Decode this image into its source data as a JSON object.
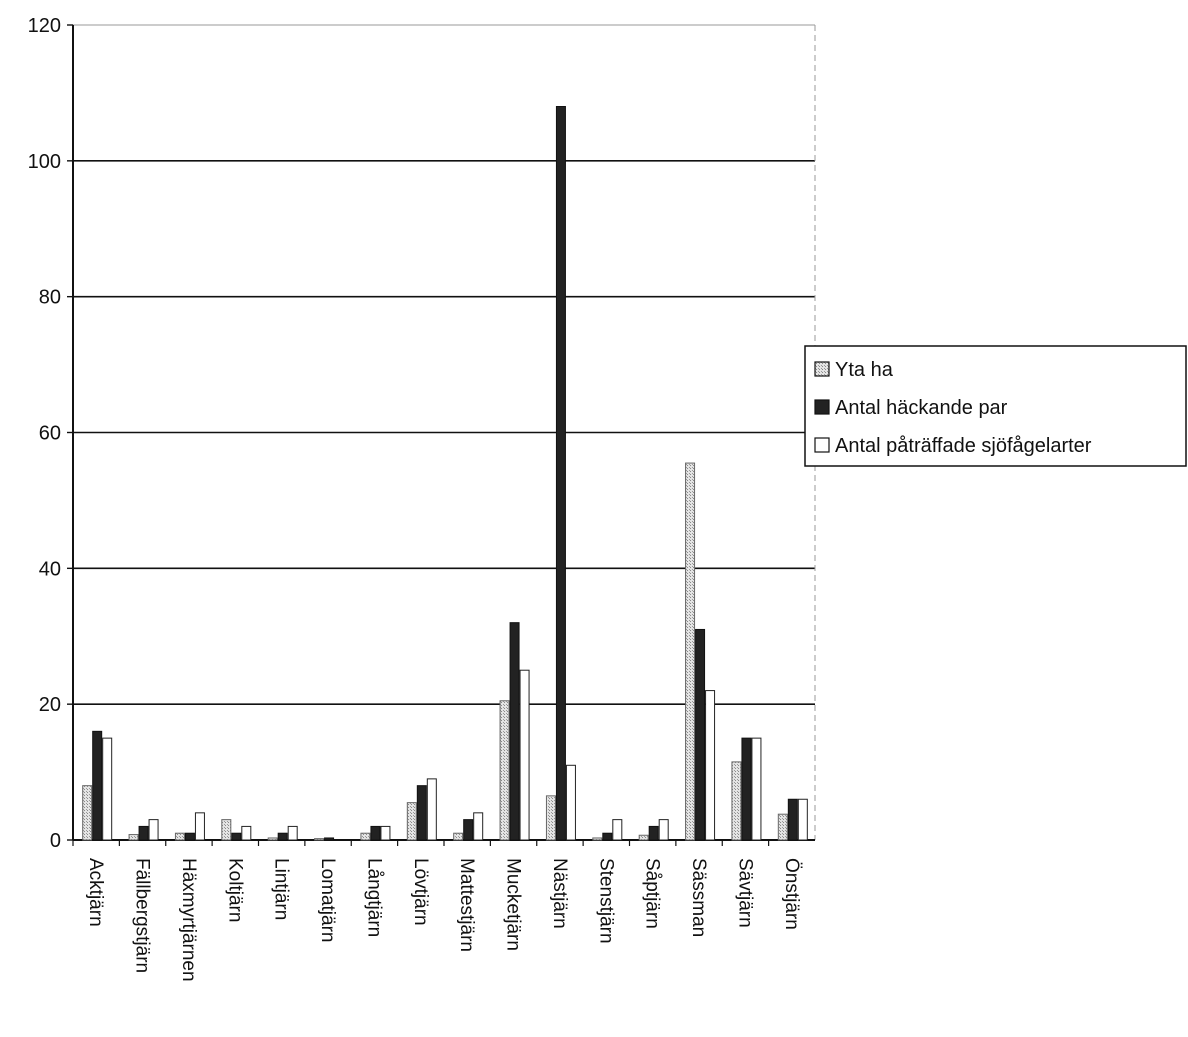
{
  "chart_data": {
    "type": "bar",
    "title": "",
    "xlabel": "",
    "ylabel": "",
    "ylim": [
      0,
      120
    ],
    "yticks": [
      "0",
      "20",
      "40",
      "60",
      "80",
      "100",
      "120"
    ],
    "grid": true,
    "legend_position": "right",
    "categories": [
      "Acktjärn",
      "Fällbergstjärn",
      "Häxmyrtjärnen",
      "Koltjärn",
      "Lintjärn",
      "Lomatjärn",
      "Långtjärn",
      "Lövtjärn",
      "Mattestjärn",
      "Mucketjärn",
      "Nästjärn",
      "Stenstjärn",
      "Såptjärn",
      "Sässman",
      "Sävtjärn",
      "Önstjärn"
    ],
    "series": [
      {
        "name": "Yta ha",
        "values": [
          8,
          0.8,
          1,
          3,
          0.3,
          0.2,
          1,
          5.5,
          1,
          20.5,
          6.5,
          0.3,
          0.7,
          55.5,
          11.5,
          3.8
        ],
        "style": "dotted-gray"
      },
      {
        "name": "Antal häckande par",
        "values": [
          16,
          2,
          1,
          1,
          1,
          0.3,
          2,
          8,
          3,
          32,
          108,
          1,
          2,
          31,
          15,
          6
        ],
        "style": "dark"
      },
      {
        "name": "Antal påträffade sjöfågelarter",
        "values": [
          15,
          3,
          4,
          2,
          2,
          0,
          2,
          9,
          4,
          25,
          11,
          3,
          3,
          22,
          15,
          6
        ],
        "style": "white"
      }
    ]
  }
}
